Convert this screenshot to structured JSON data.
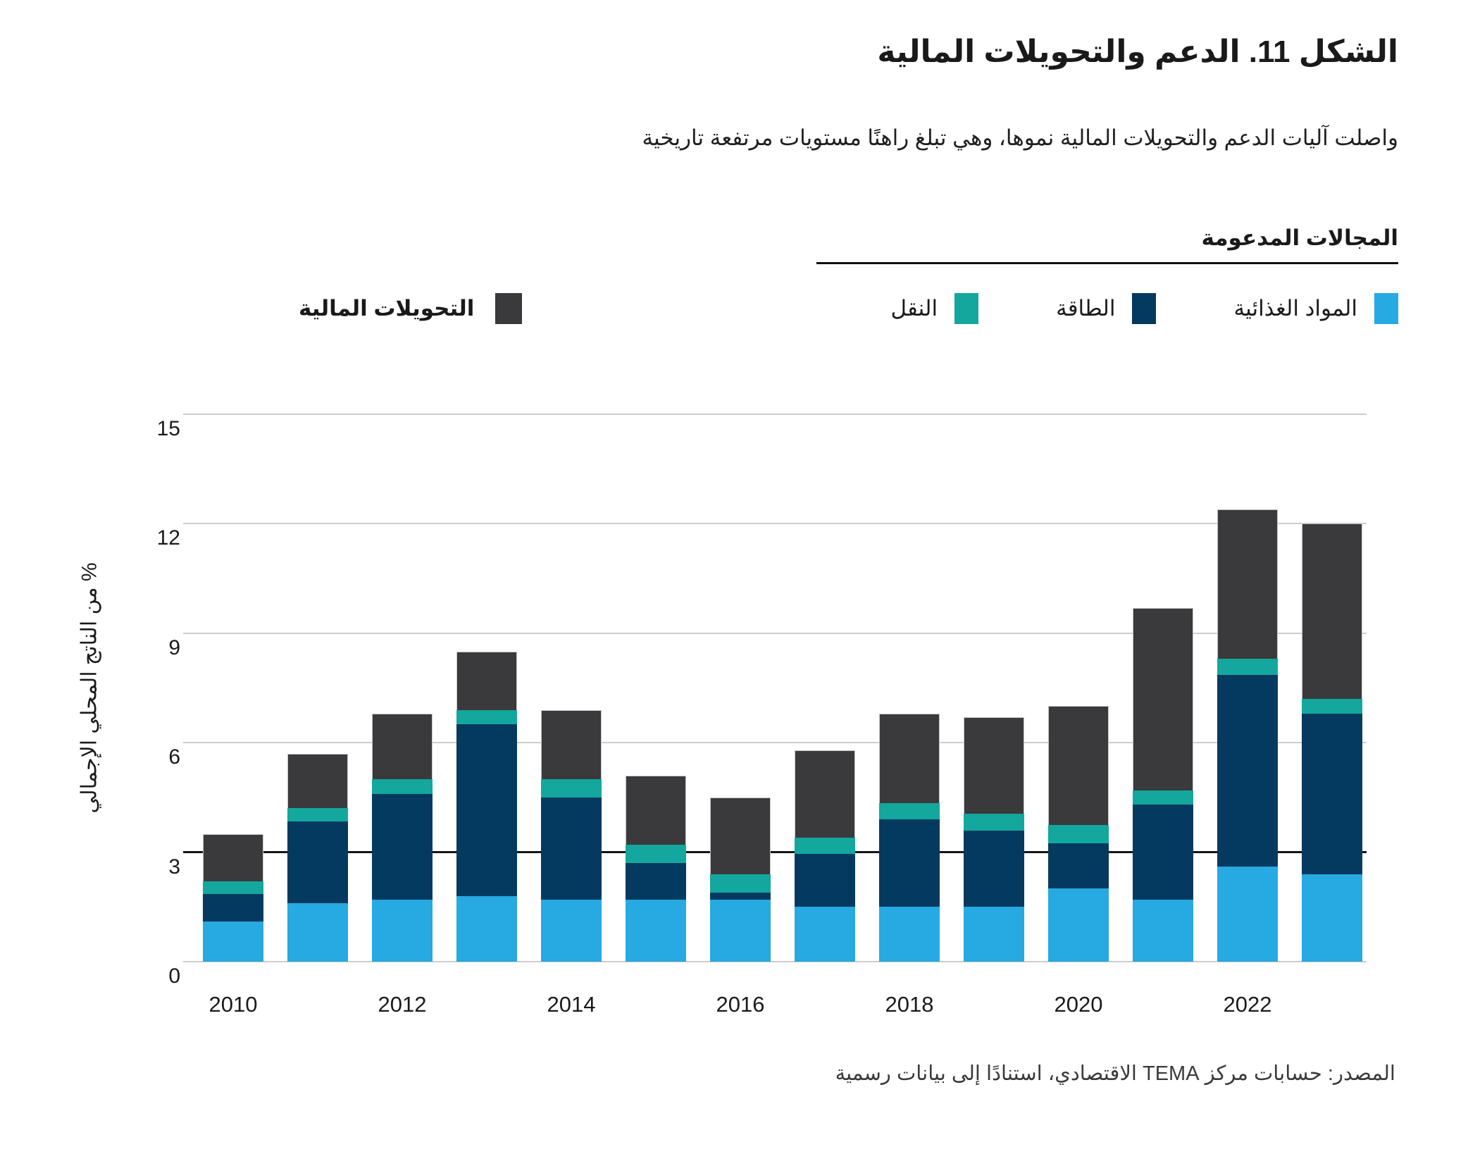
{
  "title": "الشكل 11. الدعم والتحويلات المالية",
  "subtitle": "واصلت آليات الدعم والتحويلات المالية نموها، وهي تبلغ راهنًا مستويات مرتفعة تاريخية",
  "legend": {
    "group_title": "المجالات المدعومة",
    "items": [
      {
        "label": "المواد الغذائية",
        "color": "#27A9E1"
      },
      {
        "label": "الطاقة",
        "color": "#053A60"
      },
      {
        "label": "النقل",
        "color": "#14A79D"
      }
    ],
    "standalone_item": {
      "label": "التحويلات المالية",
      "color": "#3A3A3C"
    }
  },
  "chart_data": {
    "type": "bar",
    "stacked": true,
    "title": "الشكل 11. الدعم والتحويلات المالية",
    "categories": [
      "2010",
      "2011",
      "2012",
      "2013",
      "2014",
      "2015",
      "2016",
      "2017",
      "2018",
      "2019",
      "2020",
      "2021",
      "2022",
      "2023"
    ],
    "x_tick_labels": [
      "2010",
      "2012",
      "2014",
      "2016",
      "2018",
      "2020",
      "2022"
    ],
    "series": [
      {
        "name": "المواد الغذائية",
        "color": "#27A9E1",
        "values": [
          1.1,
          1.6,
          1.7,
          1.8,
          1.7,
          1.7,
          1.7,
          1.5,
          1.5,
          1.5,
          2.0,
          1.7,
          2.6,
          2.4
        ]
      },
      {
        "name": "الطاقة",
        "color": "#053A60",
        "values": [
          0.75,
          2.25,
          2.9,
          4.7,
          2.8,
          1.0,
          0.2,
          1.45,
          2.4,
          2.1,
          1.25,
          2.6,
          5.25,
          4.4
        ]
      },
      {
        "name": "النقل",
        "color": "#14A79D",
        "values": [
          0.35,
          0.35,
          0.4,
          0.4,
          0.5,
          0.5,
          0.5,
          0.45,
          0.45,
          0.45,
          0.5,
          0.4,
          0.45,
          0.4
        ]
      },
      {
        "name": "التحويلات المالية",
        "color": "#3A3A3C",
        "values": [
          1.3,
          1.5,
          1.8,
          1.6,
          1.9,
          1.9,
          2.1,
          2.4,
          2.45,
          2.65,
          3.25,
          5.0,
          4.1,
          4.8
        ]
      }
    ],
    "totals": [
      3.5,
      5.7,
      6.8,
      8.5,
      6.9,
      5.1,
      4.5,
      5.8,
      6.8,
      6.7,
      7.0,
      9.7,
      12.4,
      12.0
    ],
    "xlabel": "",
    "ylabel": "% من الناتج المحلي الإجمالي",
    "ylim": [
      0,
      15
    ],
    "yticks": [
      0,
      3,
      6,
      9,
      12,
      15
    ],
    "emphasized_gridline": 3,
    "grid": "horizontal",
    "legend_position": "top"
  },
  "source": "المصدر: حسابات مركز TEMA الاقتصادي، استنادًا إلى بيانات رسمية"
}
